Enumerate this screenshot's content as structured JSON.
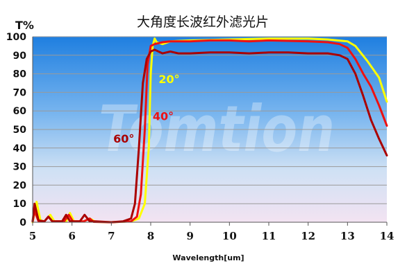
{
  "chart_data": {
    "type": "line",
    "title": "大角度长波红外滤光片",
    "ylabel": "T%",
    "xlabel": "Wavelength[um]",
    "xlim": [
      5,
      14
    ],
    "ylim": [
      0,
      100
    ],
    "x_ticks": [
      "5",
      "6",
      "7",
      "8",
      "9",
      "10",
      "11",
      "12",
      "13",
      "14"
    ],
    "y_ticks": [
      "0",
      "10",
      "20",
      "30",
      "40",
      "50",
      "60",
      "70",
      "80",
      "90",
      "100"
    ],
    "grid": true,
    "watermark": "Tomtion",
    "series": [
      {
        "name": "20°",
        "color": "#ffff00",
        "points": [
          [
            5.0,
            0
          ],
          [
            5.1,
            11
          ],
          [
            5.2,
            1
          ],
          [
            5.3,
            0.5
          ],
          [
            5.45,
            4
          ],
          [
            5.55,
            0.5
          ],
          [
            5.85,
            0.5
          ],
          [
            5.95,
            5
          ],
          [
            6.05,
            0.5
          ],
          [
            6.3,
            0.5
          ],
          [
            6.45,
            2
          ],
          [
            6.6,
            0.2
          ],
          [
            7.0,
            0
          ],
          [
            7.5,
            0.5
          ],
          [
            7.7,
            2
          ],
          [
            7.85,
            10
          ],
          [
            7.95,
            40
          ],
          [
            8.0,
            80
          ],
          [
            8.05,
            95
          ],
          [
            8.1,
            99
          ],
          [
            8.15,
            97
          ],
          [
            8.3,
            96
          ],
          [
            8.5,
            97.5
          ],
          [
            9.0,
            98
          ],
          [
            10.0,
            98.5
          ],
          [
            11.0,
            99
          ],
          [
            12.0,
            99
          ],
          [
            12.5,
            98.5
          ],
          [
            13.0,
            97.5
          ],
          [
            13.2,
            95
          ],
          [
            13.5,
            87
          ],
          [
            13.8,
            78
          ],
          [
            14.0,
            65
          ]
        ]
      },
      {
        "name": "40°",
        "color": "#ee1111",
        "points": [
          [
            5.0,
            0.5
          ],
          [
            5.05,
            6
          ],
          [
            5.15,
            0.5
          ],
          [
            5.3,
            0.5
          ],
          [
            5.4,
            3
          ],
          [
            5.5,
            0.5
          ],
          [
            5.8,
            0.5
          ],
          [
            5.92,
            4
          ],
          [
            6.02,
            0.5
          ],
          [
            6.3,
            0.5
          ],
          [
            6.45,
            2
          ],
          [
            6.55,
            0.2
          ],
          [
            7.0,
            0
          ],
          [
            7.5,
            0.5
          ],
          [
            7.65,
            3
          ],
          [
            7.75,
            15
          ],
          [
            7.85,
            50
          ],
          [
            7.92,
            85
          ],
          [
            8.0,
            95
          ],
          [
            8.1,
            96
          ],
          [
            8.3,
            97
          ],
          [
            8.5,
            97.5
          ],
          [
            9.0,
            97.5
          ],
          [
            9.5,
            98
          ],
          [
            10.0,
            98
          ],
          [
            10.5,
            97.5
          ],
          [
            11.0,
            98
          ],
          [
            12.0,
            97.5
          ],
          [
            12.5,
            97
          ],
          [
            12.8,
            96
          ],
          [
            13.0,
            94
          ],
          [
            13.2,
            88
          ],
          [
            13.4,
            80
          ],
          [
            13.6,
            73
          ],
          [
            13.8,
            63
          ],
          [
            14.0,
            52
          ]
        ]
      },
      {
        "name": "60°",
        "color": "#aa0000",
        "points": [
          [
            5.0,
            0.5
          ],
          [
            5.05,
            10
          ],
          [
            5.15,
            1
          ],
          [
            5.3,
            0.5
          ],
          [
            5.4,
            3
          ],
          [
            5.5,
            0.5
          ],
          [
            5.75,
            0.5
          ],
          [
            5.85,
            4
          ],
          [
            5.95,
            0.5
          ],
          [
            6.2,
            0.5
          ],
          [
            6.32,
            4
          ],
          [
            6.45,
            0.5
          ],
          [
            6.6,
            0.5
          ],
          [
            7.0,
            0
          ],
          [
            7.3,
            0.5
          ],
          [
            7.5,
            2
          ],
          [
            7.6,
            10
          ],
          [
            7.7,
            40
          ],
          [
            7.8,
            75
          ],
          [
            7.9,
            88
          ],
          [
            8.0,
            92
          ],
          [
            8.1,
            93
          ],
          [
            8.3,
            91
          ],
          [
            8.5,
            92
          ],
          [
            8.7,
            91
          ],
          [
            9.0,
            91
          ],
          [
            9.5,
            91.5
          ],
          [
            10.0,
            91.5
          ],
          [
            10.5,
            91
          ],
          [
            11.0,
            91.5
          ],
          [
            11.5,
            91.5
          ],
          [
            12.0,
            91
          ],
          [
            12.5,
            91
          ],
          [
            12.8,
            90
          ],
          [
            13.0,
            88
          ],
          [
            13.2,
            80
          ],
          [
            13.4,
            68
          ],
          [
            13.6,
            55
          ],
          [
            13.8,
            45
          ],
          [
            14.0,
            36
          ]
        ]
      }
    ],
    "annotations": [
      {
        "text": "20°",
        "x": 8.2,
        "y": 75,
        "color": "#ffff00"
      },
      {
        "text": "40°",
        "x": 8.05,
        "y": 55,
        "color": "#ee1111"
      },
      {
        "text": "60°",
        "x": 7.05,
        "y": 43,
        "color": "#aa0000"
      }
    ]
  }
}
